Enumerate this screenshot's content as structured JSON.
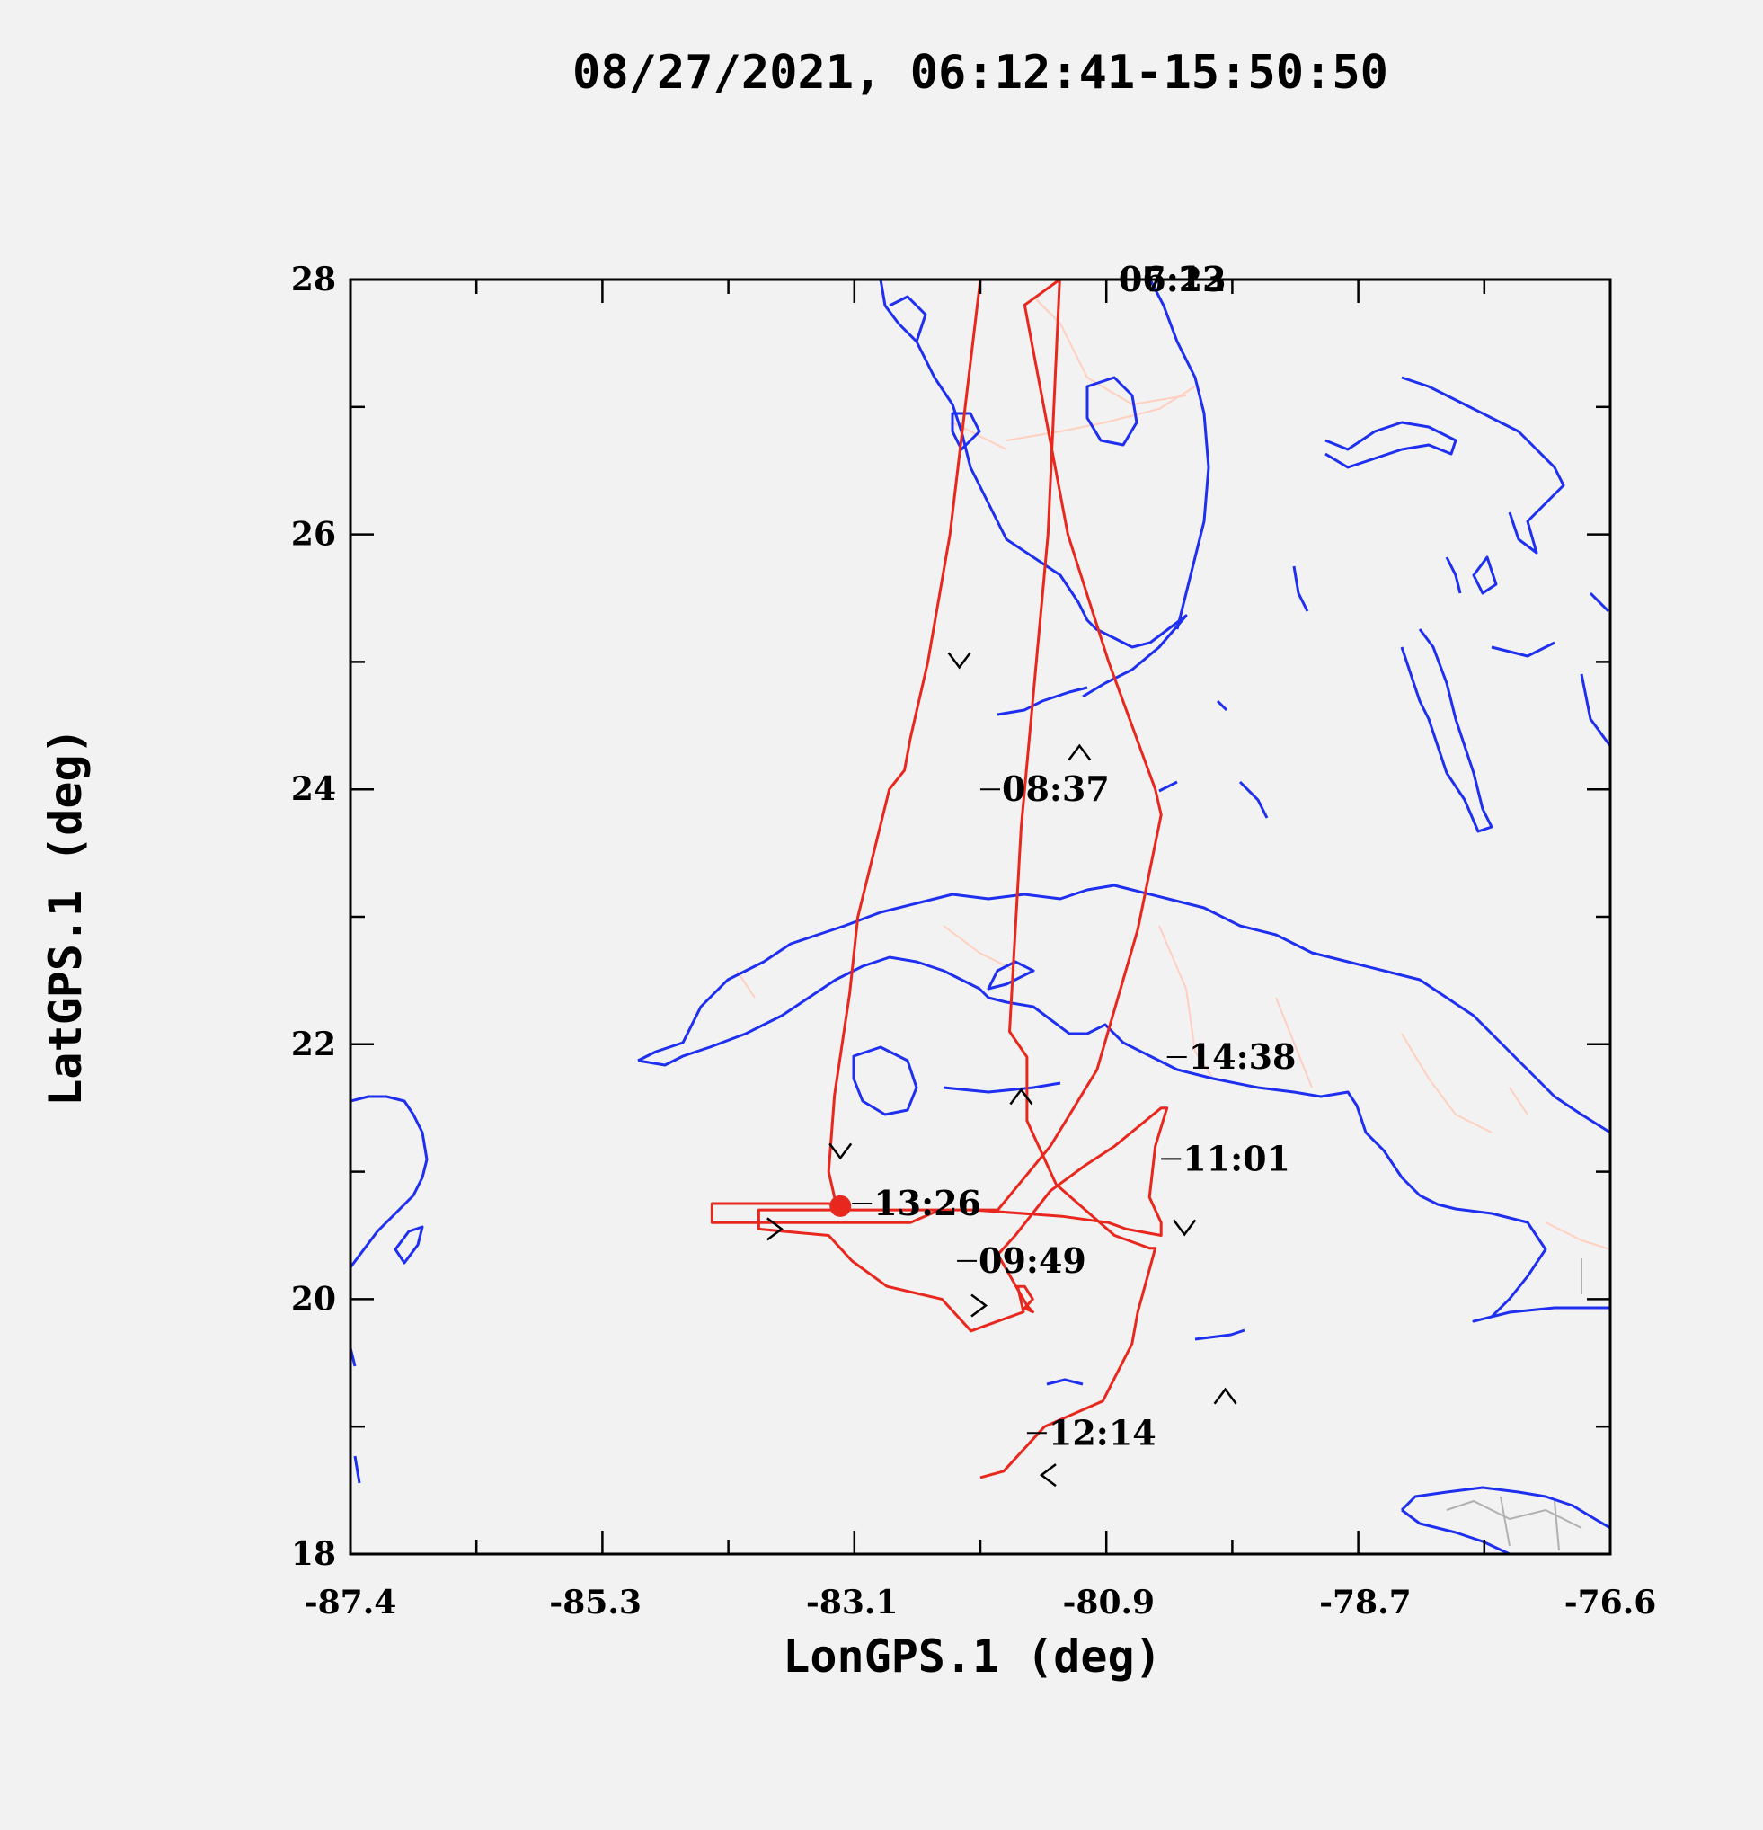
{
  "title": "08/27/2021, 06:12:41-15:50:50",
  "chart_data": {
    "type": "line",
    "xlabel": "LonGPS.1 (deg)",
    "ylabel": "LatGPS.1 (deg)",
    "xlim": [
      -87.4,
      -76.6
    ],
    "ylim": [
      18,
      28
    ],
    "x_ticks": [
      -87.4,
      -85.3,
      -83.1,
      -80.9,
      -78.7,
      -76.6
    ],
    "x_tick_labels": [
      "-87.4",
      "-85.3",
      "-83.1",
      "-80.9",
      "-78.7",
      "-76.6"
    ],
    "y_ticks": [
      18,
      20,
      22,
      24,
      26,
      28
    ],
    "y_tick_labels": [
      "18",
      "20",
      "22",
      "24",
      "26",
      "28"
    ],
    "grid": false,
    "colors": {
      "track": "#e8281e",
      "coastline": "#1f2ff0",
      "borders": "#ffcfc0",
      "frame": "#000000",
      "background": "#f2f2f2"
    },
    "flight_track": {
      "x": [
        -82.0,
        -82.26,
        -82.45,
        -82.6,
        -82.65,
        -82.78,
        -83.05,
        -83.12,
        -83.25,
        -83.3,
        -83.25,
        -83.2,
        -83.3,
        -84.3,
        -84.3,
        -82.6,
        -82.35,
        -82.05,
        -81.3,
        -80.9,
        -80.75,
        -80.45,
        -80.45,
        -80.55,
        -80.5,
        -80.4,
        -80.45,
        -80.85,
        -81.1,
        -81.4,
        -81.7,
        -81.85,
        -81.6,
        -81.55,
        -81.62,
        -81.55,
        -81.62,
        -81.68,
        -81.63,
        -82.08,
        -82.33,
        -82.8,
        -83.1,
        -83.3,
        -83.9,
        -83.9,
        -82.0,
        -81.85,
        -81.4,
        -81.2,
        -81.0,
        -80.65,
        -80.45,
        -80.5,
        -80.9,
        -81.25,
        -81.62,
        -81.32,
        -81.42,
        -81.65,
        -81.75,
        -81.6,
        -81.6,
        -81.35,
        -80.85,
        -80.55,
        -80.5,
        -80.65,
        -80.7,
        -80.95,
        -81.45,
        -81.7,
        -81.8,
        -82.0
      ],
      "y": [
        28.0,
        26.0,
        25.0,
        24.4,
        24.15,
        24.0,
        23.0,
        22.4,
        21.6,
        21.0,
        20.8,
        20.73,
        20.75,
        20.75,
        20.6,
        20.6,
        20.7,
        20.7,
        20.65,
        20.6,
        20.55,
        20.5,
        20.6,
        20.8,
        21.2,
        21.5,
        21.5,
        21.2,
        21.05,
        20.85,
        20.5,
        20.35,
        19.95,
        19.9,
        19.93,
        20.0,
        20.1,
        20.1,
        19.9,
        19.75,
        20.0,
        20.1,
        20.3,
        20.5,
        20.55,
        20.7,
        20.7,
        20.7,
        21.2,
        21.5,
        21.8,
        22.9,
        23.8,
        24.0,
        25.0,
        26.0,
        27.8,
        28.0,
        26.0,
        23.7,
        22.1,
        21.9,
        21.4,
        20.9,
        20.5,
        20.4,
        20.4,
        19.9,
        19.65,
        19.2,
        19.0,
        18.75,
        18.65,
        18.6
      ]
    },
    "time_labels": [
      {
        "text": "07:22",
        "lon": -81.0,
        "lat": 28.0
      },
      {
        "text": "06:13",
        "lon": -81.0,
        "lat": 28.0
      },
      {
        "text": "08:37",
        "lon": -82.0,
        "lat": 24.0
      },
      {
        "text": "14:38",
        "lon": -80.4,
        "lat": 21.9
      },
      {
        "text": "11:01",
        "lon": -80.45,
        "lat": 21.1
      },
      {
        "text": "13:26",
        "lon": -83.1,
        "lat": 20.75
      },
      {
        "text": "09:49",
        "lon": -82.2,
        "lat": 20.3
      },
      {
        "text": "12:14",
        "lon": -81.6,
        "lat": 18.95
      }
    ],
    "direction_arrows": [
      {
        "lon": -82.18,
        "lat": 25.0,
        "dir": "down"
      },
      {
        "lon": -81.15,
        "lat": 24.3,
        "dir": "up"
      },
      {
        "lon": -83.2,
        "lat": 21.15,
        "dir": "down"
      },
      {
        "lon": -81.65,
        "lat": 21.6,
        "dir": "up"
      },
      {
        "lon": -83.75,
        "lat": 20.55,
        "dir": "right"
      },
      {
        "lon": -82.0,
        "lat": 19.95,
        "dir": "right"
      },
      {
        "lon": -80.25,
        "lat": 20.55,
        "dir": "down"
      },
      {
        "lon": -79.9,
        "lat": 19.25,
        "dir": "up"
      },
      {
        "lon": -81.43,
        "lat": 18.62,
        "dir": "left"
      }
    ],
    "start_marker": {
      "lon": -83.2,
      "lat": 20.73
    }
  }
}
